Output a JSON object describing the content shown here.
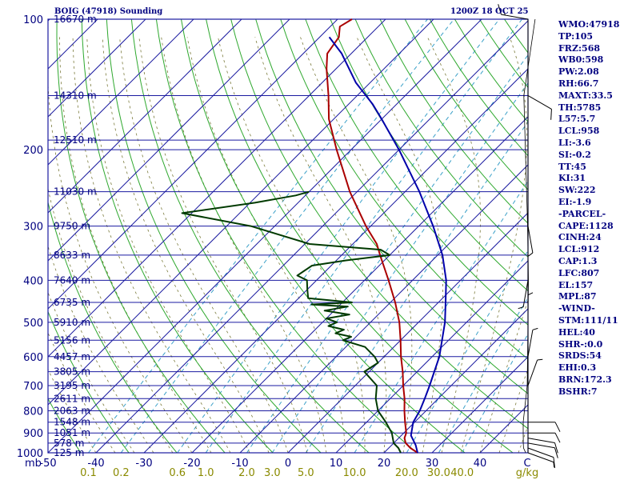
{
  "header": {
    "station": "BOIG (47918) Sounding",
    "time": "1200Z 18 OCT 25"
  },
  "indices": [
    "WMO:47918",
    "TP:105",
    "FRZ:568",
    "WB0:598",
    "PW:2.08",
    "RH:66.7",
    "MAXT:33.5",
    "TH:5785",
    "L57:5.7",
    "LCL:958",
    "LI:-3.6",
    "SI:-0.2",
    "TT:45",
    "KI:31",
    "SW:222",
    "EI:-1.9",
    "-PARCEL-",
    "CAPE:1128",
    "CINH:24",
    "LCL:912",
    "CAP:1.3",
    "LFC:807",
    "EL:157",
    "MPL:87",
    "-WIND-",
    "STM:111/11",
    "HEL:40",
    "SHR-:0.0",
    "SRDS:54",
    "EHI:0.3",
    "BRN:172.3",
    "BSHR:7"
  ],
  "chart_data": {
    "type": "skew-t log-p sounding",
    "title": "BOIG (47918) Sounding",
    "valid_time": "1200Z 18 OCT 25",
    "pressure_axis": {
      "unit": "mb",
      "range": [
        1000,
        100
      ],
      "scale": "log",
      "tick_labels": [
        "100",
        "200",
        "300",
        "400",
        "500",
        "600",
        "700",
        "800",
        "900",
        "1000"
      ],
      "ticks": [
        100,
        200,
        300,
        400,
        500,
        600,
        700,
        800,
        900,
        1000
      ]
    },
    "temperature_axis": {
      "unit": "C",
      "range": [
        -50,
        50
      ],
      "skew": "45 degree",
      "tick_labels": [
        "-50",
        "-40",
        "-30",
        "-20",
        "-10",
        "0",
        "10",
        "20",
        "30",
        "40",
        "C"
      ],
      "ticks": [
        -50,
        -40,
        -30,
        -20,
        -10,
        0,
        10,
        20,
        30,
        40
      ]
    },
    "mixing_ratio_axis": {
      "unit": "g/kg",
      "labels": [
        "0.1",
        "0.2",
        "0.6",
        "1.0",
        "2.0",
        "3.0",
        "5.0",
        "10.0",
        "20.0",
        "30.0",
        "40.0"
      ],
      "values": [
        0.1,
        0.2,
        0.6,
        1.0,
        2.0,
        3.0,
        5.0,
        10.0,
        20.0,
        30.0,
        40.0
      ]
    },
    "height_levels": [
      {
        "p": 100,
        "label": "16670 m"
      },
      {
        "p": 150,
        "label": "14310 m"
      },
      {
        "p": 190,
        "label": "12510 m"
      },
      {
        "p": 250,
        "label": "11030 m"
      },
      {
        "p": 300,
        "label": "9750 m"
      },
      {
        "p": 350,
        "label": "8633 m"
      },
      {
        "p": 400,
        "label": "7640 m"
      },
      {
        "p": 450,
        "label": "6735 m"
      },
      {
        "p": 500,
        "label": "5910 m"
      },
      {
        "p": 550,
        "label": "5156 m"
      },
      {
        "p": 600,
        "label": "4457 m"
      },
      {
        "p": 650,
        "label": "3805 m"
      },
      {
        "p": 700,
        "label": "3195 m"
      },
      {
        "p": 750,
        "label": "2611 m"
      },
      {
        "p": 800,
        "label": "2063 m"
      },
      {
        "p": 850,
        "label": "1548 m"
      },
      {
        "p": 900,
        "label": "1051 m"
      },
      {
        "p": 950,
        "label": "578 m"
      },
      {
        "p": 1000,
        "label": "125 m"
      }
    ],
    "series": [
      {
        "name": "temperature",
        "color": "#aa0000",
        "points": [
          [
            1000,
            27
          ],
          [
            975,
            24.5
          ],
          [
            950,
            22.5
          ],
          [
            925,
            21.2
          ],
          [
            900,
            20.5
          ],
          [
            850,
            18
          ],
          [
            800,
            15.5
          ],
          [
            750,
            13
          ],
          [
            700,
            10
          ],
          [
            650,
            7
          ],
          [
            600,
            3.5
          ],
          [
            550,
            0
          ],
          [
            500,
            -4
          ],
          [
            450,
            -9
          ],
          [
            400,
            -15
          ],
          [
            350,
            -22
          ],
          [
            330,
            -25
          ],
          [
            300,
            -31
          ],
          [
            250,
            -41.5
          ],
          [
            200,
            -53
          ],
          [
            170,
            -61
          ],
          [
            150,
            -66
          ],
          [
            130,
            -72
          ],
          [
            120,
            -75
          ],
          [
            110,
            -76
          ],
          [
            104,
            -78
          ],
          [
            100,
            -77
          ]
        ]
      },
      {
        "name": "dewpoint",
        "color": "#003a00",
        "points": [
          [
            1000,
            23.5
          ],
          [
            975,
            22
          ],
          [
            950,
            20
          ],
          [
            900,
            17.5
          ],
          [
            850,
            14
          ],
          [
            800,
            10
          ],
          [
            750,
            7
          ],
          [
            700,
            4.5
          ],
          [
            650,
            -1
          ],
          [
            620,
            0
          ],
          [
            600,
            -2
          ],
          [
            570,
            -6
          ],
          [
            550,
            -12
          ],
          [
            540,
            -11
          ],
          [
            530,
            -15
          ],
          [
            520,
            -14
          ],
          [
            510,
            -18
          ],
          [
            500,
            -17
          ],
          [
            490,
            -20
          ],
          [
            480,
            -16
          ],
          [
            470,
            -22
          ],
          [
            460,
            -18
          ],
          [
            455,
            -26
          ],
          [
            450,
            -18
          ],
          [
            440,
            -28
          ],
          [
            420,
            -30
          ],
          [
            400,
            -32
          ],
          [
            390,
            -35
          ],
          [
            370,
            -34
          ],
          [
            360,
            -28
          ],
          [
            350,
            -20
          ],
          [
            340,
            -23
          ],
          [
            330,
            -39
          ],
          [
            300,
            -55
          ],
          [
            280,
            -72
          ],
          [
            265,
            -59
          ],
          [
            255,
            -52
          ],
          [
            250,
            -50
          ]
        ]
      },
      {
        "name": "parcel",
        "color": "#0000aa",
        "points": [
          [
            1000,
            27
          ],
          [
            960,
            25
          ],
          [
            912,
            22
          ],
          [
            850,
            19.7
          ],
          [
            800,
            18.7
          ],
          [
            750,
            17.2
          ],
          [
            700,
            15.5
          ],
          [
            600,
            11.5
          ],
          [
            500,
            5.5
          ],
          [
            450,
            1.5
          ],
          [
            400,
            -3
          ],
          [
            350,
            -9
          ],
          [
            300,
            -17
          ],
          [
            250,
            -27
          ],
          [
            200,
            -40
          ],
          [
            170,
            -50
          ],
          [
            157,
            -55
          ],
          [
            140,
            -63
          ],
          [
            120,
            -72
          ],
          [
            110,
            -78
          ]
        ]
      }
    ],
    "wind_barbs": [
      {
        "p": 1000,
        "dir": 290,
        "spd": 5
      },
      {
        "p": 975,
        "dir": 290,
        "spd": 10
      },
      {
        "p": 950,
        "dir": 280,
        "spd": 10
      },
      {
        "p": 925,
        "dir": 280,
        "spd": 10
      },
      {
        "p": 900,
        "dir": 270,
        "spd": 10
      },
      {
        "p": 850,
        "dir": 270,
        "spd": 10
      },
      {
        "p": 700,
        "dir": 200,
        "spd": 5
      },
      {
        "p": 600,
        "dir": 190,
        "spd": 5
      },
      {
        "p": 500,
        "dir": 180,
        "spd": 5
      },
      {
        "p": 400,
        "dir": 10,
        "spd": 5
      },
      {
        "p": 300,
        "dir": 350,
        "spd": 5
      },
      {
        "p": 150,
        "dir": 300,
        "spd": 10
      },
      {
        "p": 100,
        "dir": 100,
        "spd": 15
      }
    ]
  }
}
